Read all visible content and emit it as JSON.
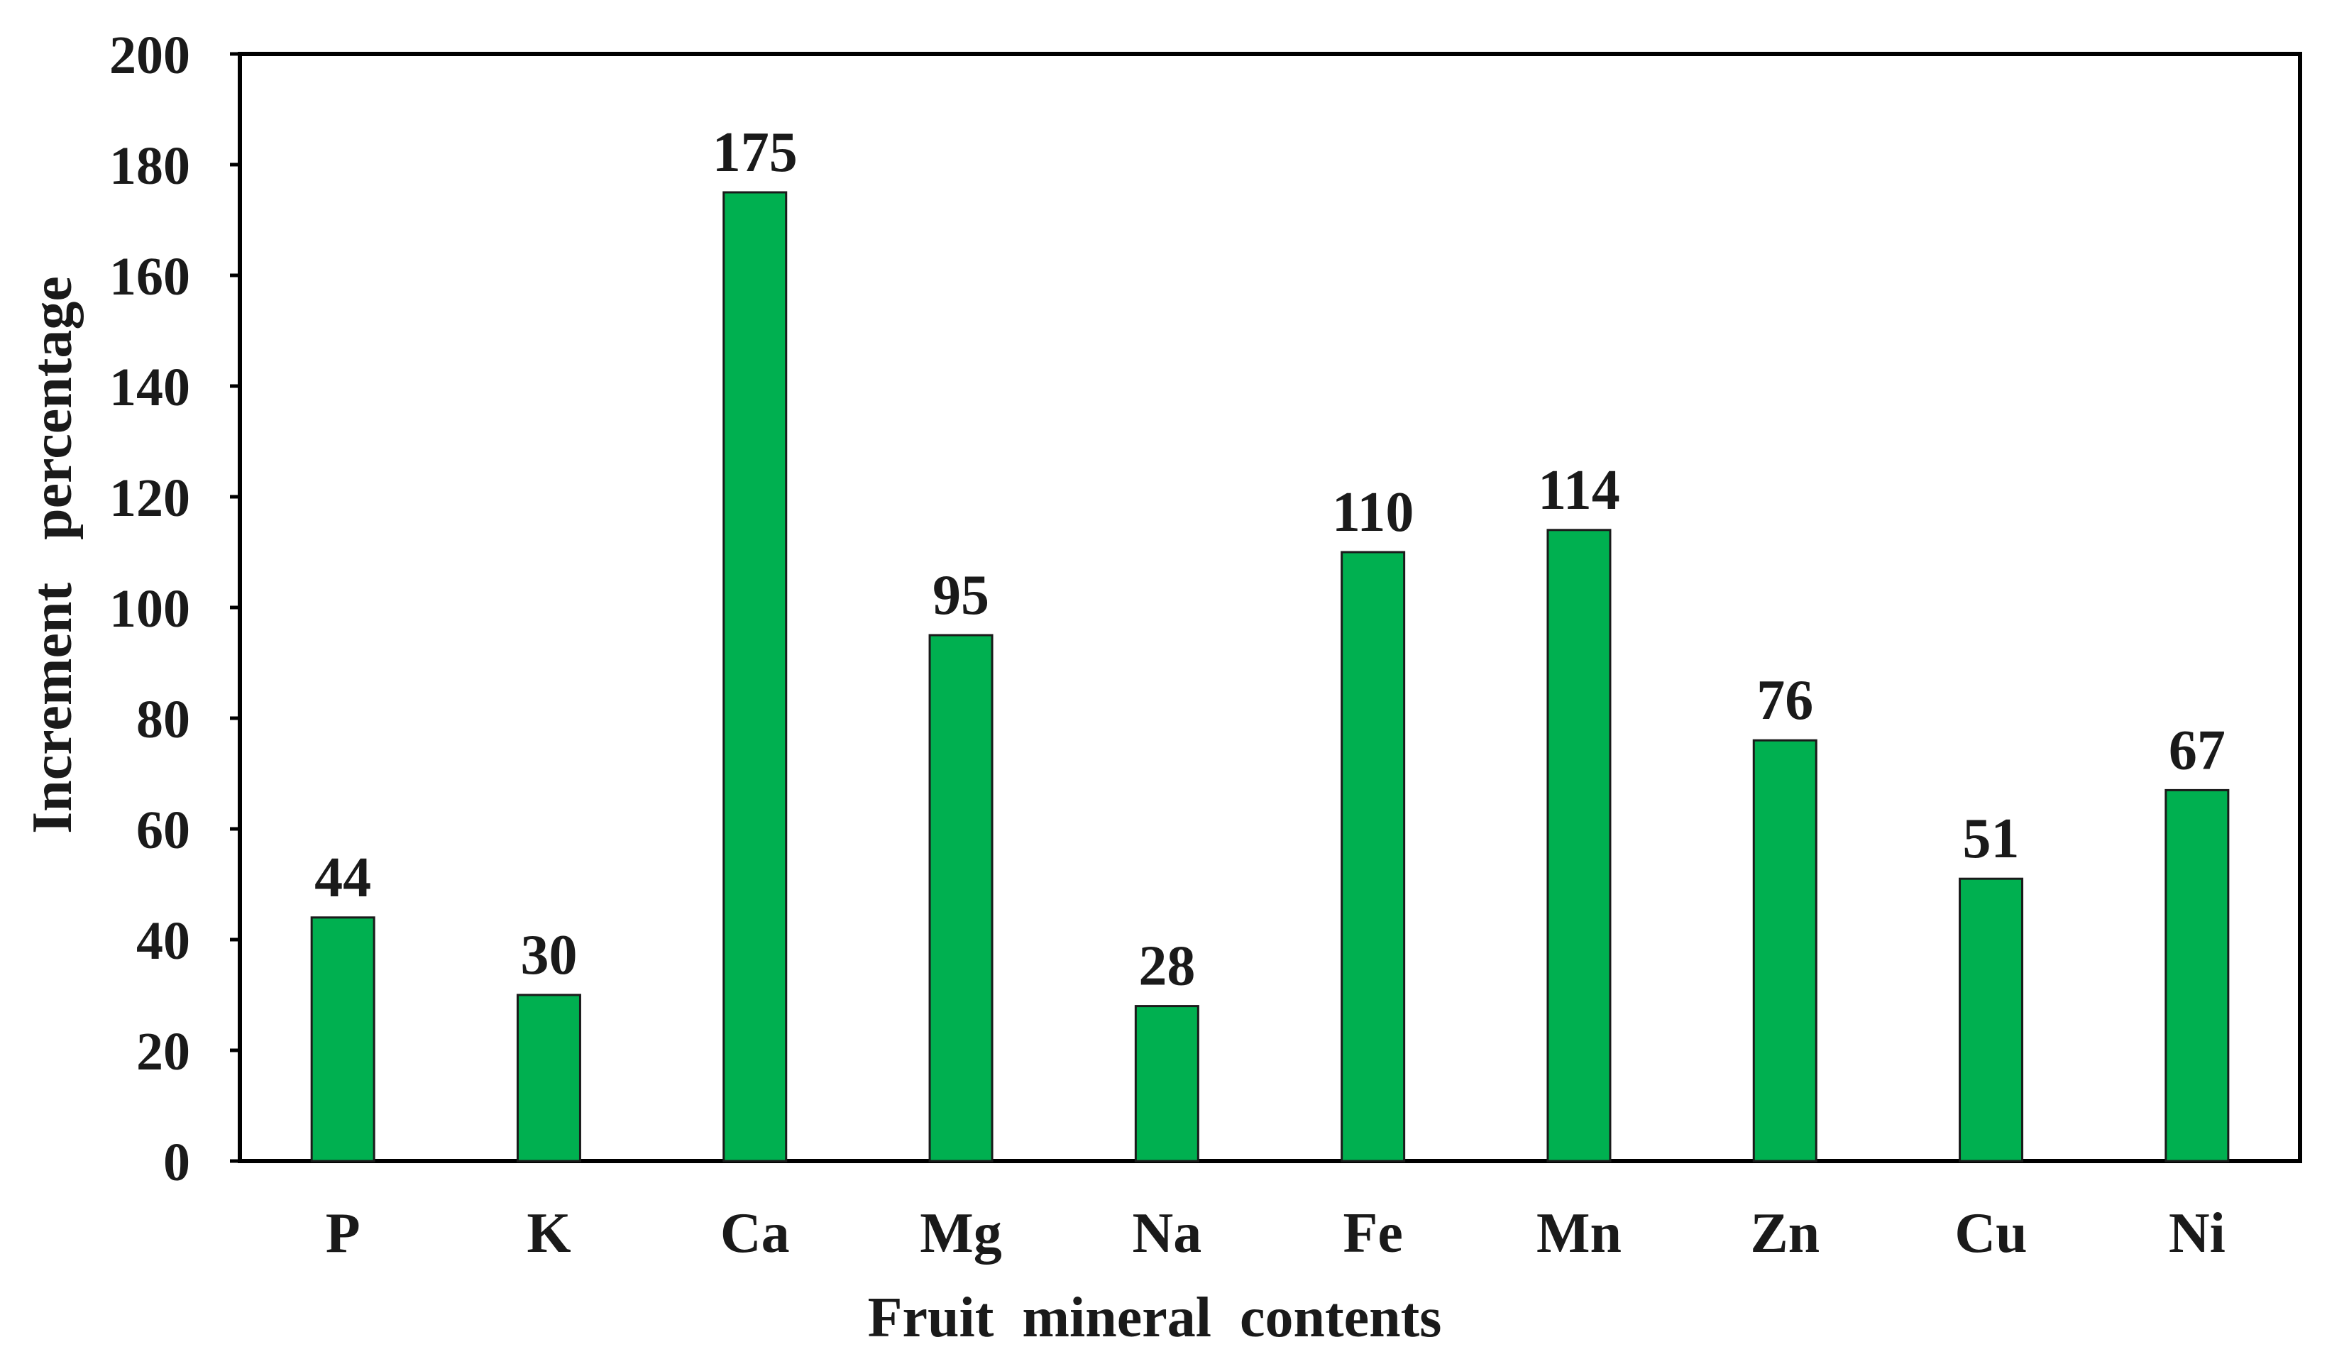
{
  "chart_data": {
    "type": "bar",
    "categories": [
      "P",
      "K",
      "Ca",
      "Mg",
      "Na",
      "Fe",
      "Mn",
      "Zn",
      "Cu",
      "Ni"
    ],
    "values": [
      44,
      30,
      175,
      95,
      28,
      110,
      114,
      76,
      51,
      67
    ],
    "data_labels": [
      "44",
      "30",
      "175",
      "95",
      "28",
      "110",
      "114",
      "76",
      "51",
      "67"
    ],
    "xlabel": "Fruit  mineral  contents",
    "ylabel": "Increment   percentage",
    "ylim": [
      0,
      200
    ],
    "yticks": [
      0,
      20,
      40,
      60,
      80,
      100,
      120,
      140,
      160,
      180,
      200
    ],
    "grid": false,
    "legend": "none",
    "colors": {
      "bar_fill": "#00b050",
      "bar_stroke": "#1a1a1a",
      "axis": "#000000",
      "text": "#1a1a1a"
    }
  }
}
